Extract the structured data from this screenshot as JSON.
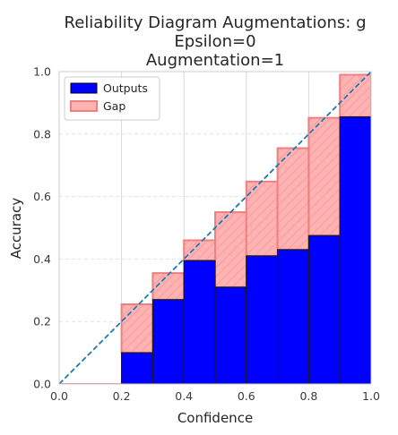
{
  "chart_data": {
    "type": "bar",
    "title_lines": [
      "Reliability Diagram Augmentations: g",
      "Epsilon=0",
      "Augmentation=1"
    ],
    "xlabel": "Confidence",
    "ylabel": "Accuracy",
    "xlim": [
      0.0,
      1.0
    ],
    "ylim": [
      0.0,
      1.0
    ],
    "xticks": [
      "0.0",
      "0.2",
      "0.4",
      "0.6",
      "0.8",
      "1.0"
    ],
    "yticks": [
      "0.0",
      "0.2",
      "0.4",
      "0.6",
      "0.8",
      "1.0"
    ],
    "grid": true,
    "legend_position": "top-left",
    "bin_edges": [
      0.0,
      0.1,
      0.2,
      0.3,
      0.4,
      0.5,
      0.6,
      0.7,
      0.8,
      0.9,
      1.0
    ],
    "series": [
      {
        "name": "Outputs",
        "color": "#0000ff",
        "values": [
          0.0,
          0.0,
          0.1,
          0.27,
          0.395,
          0.31,
          0.41,
          0.43,
          0.475,
          0.855
        ]
      },
      {
        "name": "Gap",
        "color": "#ffb3b3",
        "edge_color": "#f08080",
        "bottom": [
          0.0,
          0.0,
          0.1,
          0.27,
          0.395,
          0.31,
          0.41,
          0.43,
          0.475,
          0.855
        ],
        "top": [
          0.0,
          0.0,
          0.255,
          0.355,
          0.46,
          0.55,
          0.648,
          0.755,
          0.852,
          0.99
        ]
      }
    ],
    "diagonal": {
      "style": "dashed",
      "color": "#1f77b4"
    }
  }
}
